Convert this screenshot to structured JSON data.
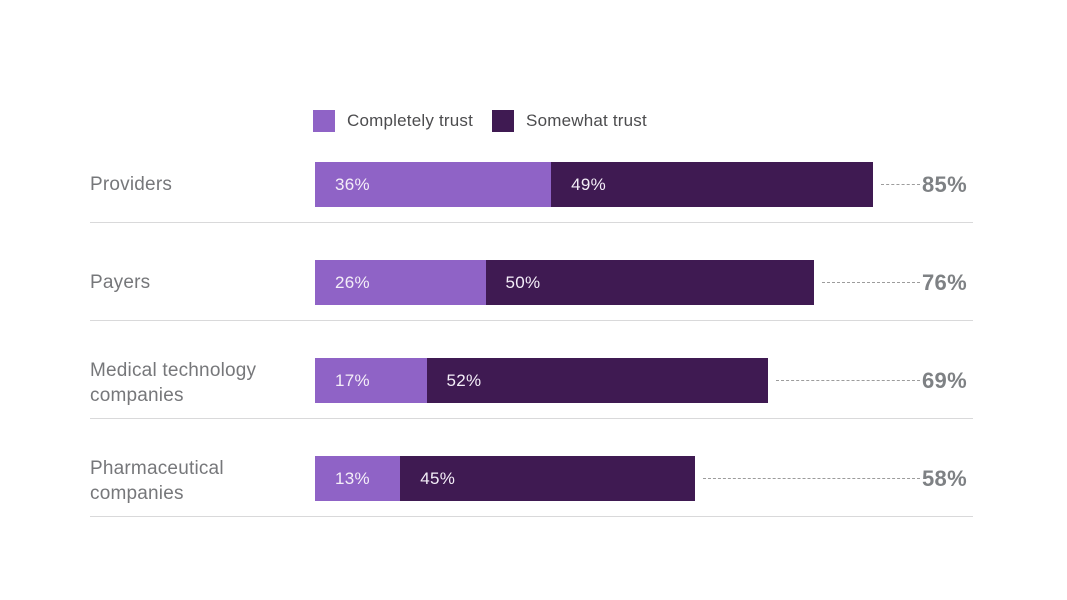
{
  "chart_data": {
    "type": "bar",
    "orientation": "horizontal",
    "stacked": true,
    "categories": [
      "Providers",
      "Payers",
      "Medical technology companies",
      "Pharmaceutical companies"
    ],
    "series": [
      {
        "name": "Completely trust",
        "color": "#8f63c6",
        "values": [
          36,
          26,
          17,
          13
        ]
      },
      {
        "name": "Somewhat trust",
        "color": "#3f1a52",
        "values": [
          49,
          50,
          52,
          45
        ]
      }
    ],
    "totals": [
      85,
      76,
      69,
      58
    ],
    "value_suffix": "%",
    "xlim": [
      0,
      100
    ],
    "legend_position": "top",
    "grid": false,
    "connector_style": "dashed"
  },
  "colors": {
    "completely_trust": "#8f63c6",
    "somewhat_trust": "#3f1a52",
    "category_label": "#76777a",
    "total_label": "#7e8184",
    "separator": "#d9d9da",
    "connector": "#9c9c9c",
    "background": "#ffffff"
  }
}
